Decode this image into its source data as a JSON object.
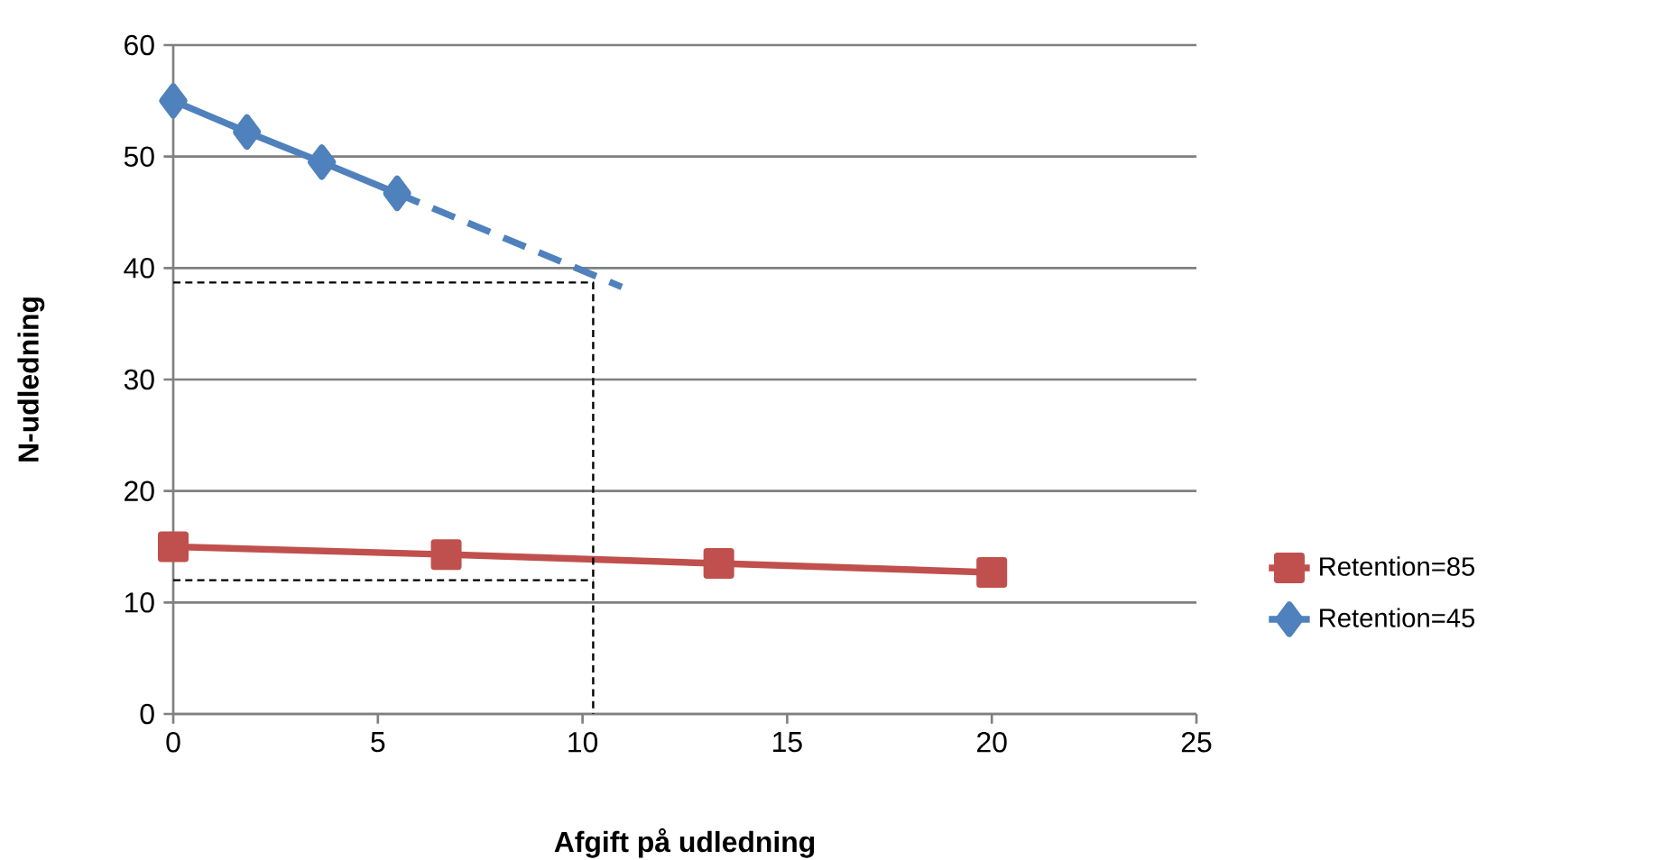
{
  "chart_data": {
    "type": "line",
    "xlabel": "Afgift på udledning",
    "ylabel": "N-udledning",
    "xlim": [
      0,
      25
    ],
    "ylim": [
      0,
      60
    ],
    "xticks": [
      0,
      5,
      10,
      15,
      20,
      25
    ],
    "yticks": [
      0,
      10,
      20,
      30,
      40,
      50,
      60
    ],
    "grid": "y",
    "legend": "right",
    "series": [
      {
        "name": "Retention=85",
        "color": "#c0504d",
        "marker": "square",
        "line_style": "solid",
        "x": [
          0,
          6.67,
          13.33,
          20
        ],
        "values": [
          15,
          14.3,
          13.5,
          12.7
        ]
      },
      {
        "name": "Retention=45",
        "color": "#4f81bd",
        "marker": "diamond",
        "line_style": "solid",
        "x": [
          0,
          1.8,
          3.63,
          5.47
        ],
        "values": [
          55,
          52.2,
          49.5,
          46.7
        ]
      },
      {
        "color": "#4f81bd",
        "marker": "none",
        "line_style": "dashed",
        "x": [
          5.47,
          10.96
        ],
        "values": [
          46.7,
          38.3
        ]
      },
      {
        "color": "#000000",
        "marker": "none",
        "line_style": "dotted",
        "x": [
          0,
          10.26,
          10.26
        ],
        "values": [
          38.7,
          38.7,
          0
        ]
      },
      {
        "color": "#000000",
        "marker": "none",
        "line_style": "dotted",
        "x": [
          0,
          10.26
        ],
        "values": [
          12,
          12
        ]
      }
    ]
  }
}
